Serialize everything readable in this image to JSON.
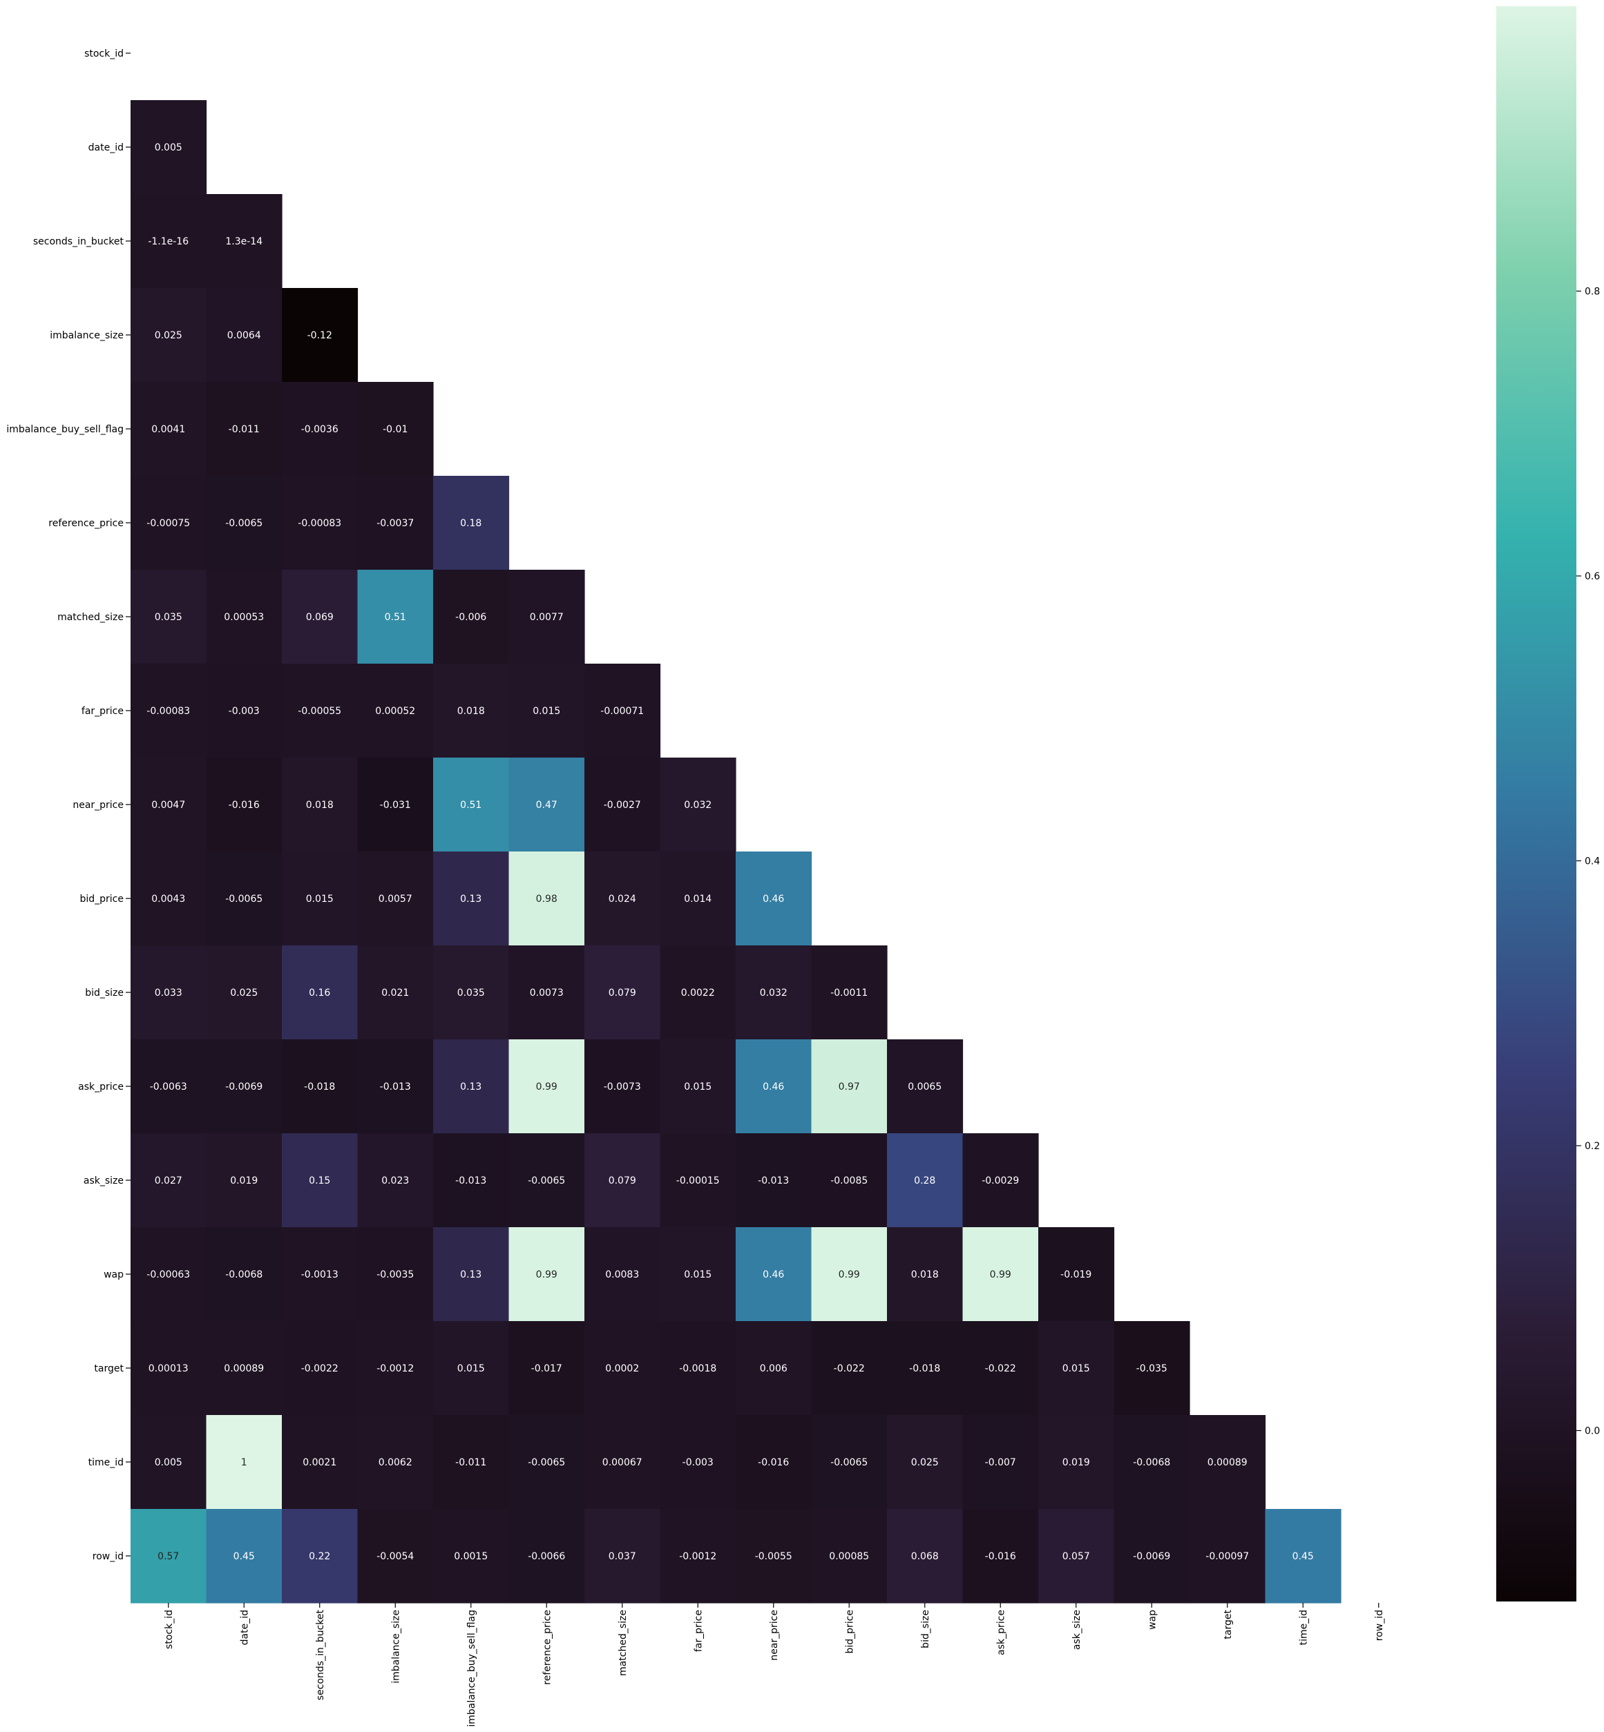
{
  "chart_data": {
    "type": "heatmap",
    "title": "",
    "xlabel": "",
    "ylabel": "",
    "mask": "upper-triangle",
    "colormap": "mako",
    "colormap_stops": [
      "#0b0405",
      "#2b1c35",
      "#383e78",
      "#3478a2",
      "#34b2ae",
      "#7ed0ad",
      "#def5e5"
    ],
    "vmin": -0.12,
    "vmax": 1.0,
    "colorbar": {
      "ticks": [
        0.0,
        0.2,
        0.4,
        0.6,
        0.8
      ],
      "tick_labels": [
        "0.0",
        "0.2",
        "0.4",
        "0.6",
        "0.8"
      ]
    },
    "row_labels": [
      "stock_id",
      "date_id",
      "seconds_in_bucket",
      "imbalance_size",
      "imbalance_buy_sell_flag",
      "reference_price",
      "matched_size",
      "far_price",
      "near_price",
      "bid_price",
      "bid_size",
      "ask_price",
      "ask_size",
      "wap",
      "target",
      "time_id",
      "row_id"
    ],
    "col_labels": [
      "stock_id",
      "date_id",
      "seconds_in_bucket",
      "imbalance_size",
      "imbalance_buy_sell_flag",
      "reference_price",
      "matched_size",
      "far_price",
      "near_price",
      "bid_price",
      "bid_size",
      "ask_price",
      "ask_size",
      "wap",
      "target",
      "time_id",
      "row_id"
    ],
    "cells": [
      [],
      [
        [
          "0.005",
          0.005
        ]
      ],
      [
        [
          "-1.1e-16",
          -1.1e-16
        ],
        [
          "1.3e-14",
          1.3e-14
        ]
      ],
      [
        [
          "0.025",
          0.025
        ],
        [
          "0.0064",
          0.0064
        ],
        [
          "-0.12",
          -0.12
        ]
      ],
      [
        [
          "0.0041",
          0.0041
        ],
        [
          "-0.011",
          -0.011
        ],
        [
          "-0.0036",
          -0.0036
        ],
        [
          "-0.01",
          -0.01
        ]
      ],
      [
        [
          "-0.00075",
          -0.00075
        ],
        [
          "-0.0065",
          -0.0065
        ],
        [
          "-0.00083",
          -0.00083
        ],
        [
          "-0.0037",
          -0.0037
        ],
        [
          "0.18",
          0.18
        ]
      ],
      [
        [
          "0.035",
          0.035
        ],
        [
          "0.00053",
          0.00053
        ],
        [
          "0.069",
          0.069
        ],
        [
          "0.51",
          0.51
        ],
        [
          "-0.006",
          -0.006
        ],
        [
          "0.0077",
          0.0077
        ]
      ],
      [
        [
          "-0.00083",
          -0.00083
        ],
        [
          "-0.003",
          -0.003
        ],
        [
          "-0.00055",
          -0.00055
        ],
        [
          "0.00052",
          0.00052
        ],
        [
          "0.018",
          0.018
        ],
        [
          "0.015",
          0.015
        ],
        [
          "-0.00071",
          -0.00071
        ]
      ],
      [
        [
          "0.0047",
          0.0047
        ],
        [
          "-0.016",
          -0.016
        ],
        [
          "0.018",
          0.018
        ],
        [
          "-0.031",
          -0.031
        ],
        [
          "0.51",
          0.51
        ],
        [
          "0.47",
          0.47
        ],
        [
          "-0.0027",
          -0.0027
        ],
        [
          "0.032",
          0.032
        ]
      ],
      [
        [
          "0.0043",
          0.0043
        ],
        [
          "-0.0065",
          -0.0065
        ],
        [
          "0.015",
          0.015
        ],
        [
          "0.0057",
          0.0057
        ],
        [
          "0.13",
          0.13
        ],
        [
          "0.98",
          0.98
        ],
        [
          "0.024",
          0.024
        ],
        [
          "0.014",
          0.014
        ],
        [
          "0.46",
          0.46
        ]
      ],
      [
        [
          "0.033",
          0.033
        ],
        [
          "0.025",
          0.025
        ],
        [
          "0.16",
          0.16
        ],
        [
          "0.021",
          0.021
        ],
        [
          "0.035",
          0.035
        ],
        [
          "0.0073",
          0.0073
        ],
        [
          "0.079",
          0.079
        ],
        [
          "0.0022",
          0.0022
        ],
        [
          "0.032",
          0.032
        ],
        [
          "-0.0011",
          -0.0011
        ]
      ],
      [
        [
          "-0.0063",
          -0.0063
        ],
        [
          "-0.0069",
          -0.0069
        ],
        [
          "-0.018",
          -0.018
        ],
        [
          "-0.013",
          -0.013
        ],
        [
          "0.13",
          0.13
        ],
        [
          "0.99",
          0.99
        ],
        [
          "-0.0073",
          -0.0073
        ],
        [
          "0.015",
          0.015
        ],
        [
          "0.46",
          0.46
        ],
        [
          "0.97",
          0.97
        ],
        [
          "0.0065",
          0.0065
        ]
      ],
      [
        [
          "0.027",
          0.027
        ],
        [
          "0.019",
          0.019
        ],
        [
          "0.15",
          0.15
        ],
        [
          "0.023",
          0.023
        ],
        [
          "-0.013",
          -0.013
        ],
        [
          "-0.0065",
          -0.0065
        ],
        [
          "0.079",
          0.079
        ],
        [
          "-0.00015",
          -0.00015
        ],
        [
          "-0.013",
          -0.013
        ],
        [
          "-0.0085",
          -0.0085
        ],
        [
          "0.28",
          0.28
        ],
        [
          "-0.0029",
          -0.0029
        ]
      ],
      [
        [
          "-0.00063",
          -0.00063
        ],
        [
          "-0.0068",
          -0.0068
        ],
        [
          "-0.0013",
          -0.0013
        ],
        [
          "-0.0035",
          -0.0035
        ],
        [
          "0.13",
          0.13
        ],
        [
          "0.99",
          0.99
        ],
        [
          "0.0083",
          0.0083
        ],
        [
          "0.015",
          0.015
        ],
        [
          "0.46",
          0.46
        ],
        [
          "0.99",
          0.99
        ],
        [
          "0.018",
          0.018
        ],
        [
          "0.99",
          0.99
        ],
        [
          "-0.019",
          -0.019
        ]
      ],
      [
        [
          "0.00013",
          0.00013
        ],
        [
          "0.00089",
          0.00089
        ],
        [
          "-0.0022",
          -0.0022
        ],
        [
          "-0.0012",
          -0.0012
        ],
        [
          "0.015",
          0.015
        ],
        [
          "-0.017",
          -0.017
        ],
        [
          "0.0002",
          0.0002
        ],
        [
          "-0.0018",
          -0.0018
        ],
        [
          "0.006",
          0.006
        ],
        [
          "-0.022",
          -0.022
        ],
        [
          "-0.018",
          -0.018
        ],
        [
          "-0.022",
          -0.022
        ],
        [
          "0.015",
          0.015
        ],
        [
          "-0.035",
          -0.035
        ]
      ],
      [
        [
          "0.005",
          0.005
        ],
        [
          "1",
          1.0
        ],
        [
          "0.0021",
          0.0021
        ],
        [
          "0.0062",
          0.0062
        ],
        [
          "-0.011",
          -0.011
        ],
        [
          "-0.0065",
          -0.0065
        ],
        [
          "0.00067",
          0.00067
        ],
        [
          "-0.003",
          -0.003
        ],
        [
          "-0.016",
          -0.016
        ],
        [
          "-0.0065",
          -0.0065
        ],
        [
          "0.025",
          0.025
        ],
        [
          "-0.007",
          -0.007
        ],
        [
          "0.019",
          0.019
        ],
        [
          "-0.0068",
          -0.0068
        ],
        [
          "0.00089",
          0.00089
        ]
      ],
      [
        [
          "0.57",
          0.57
        ],
        [
          "0.45",
          0.45
        ],
        [
          "0.22",
          0.22
        ],
        [
          "-0.0054",
          -0.0054
        ],
        [
          "0.0015",
          0.0015
        ],
        [
          "-0.0066",
          -0.0066
        ],
        [
          "0.037",
          0.037
        ],
        [
          "-0.0012",
          -0.0012
        ],
        [
          "-0.0055",
          -0.0055
        ],
        [
          "0.00085",
          0.00085
        ],
        [
          "0.068",
          0.068
        ],
        [
          "-0.016",
          -0.016
        ],
        [
          "0.057",
          0.057
        ],
        [
          "-0.0069",
          -0.0069
        ],
        [
          "-0.00097",
          -0.00097
        ],
        [
          "0.45",
          0.45
        ]
      ]
    ]
  }
}
